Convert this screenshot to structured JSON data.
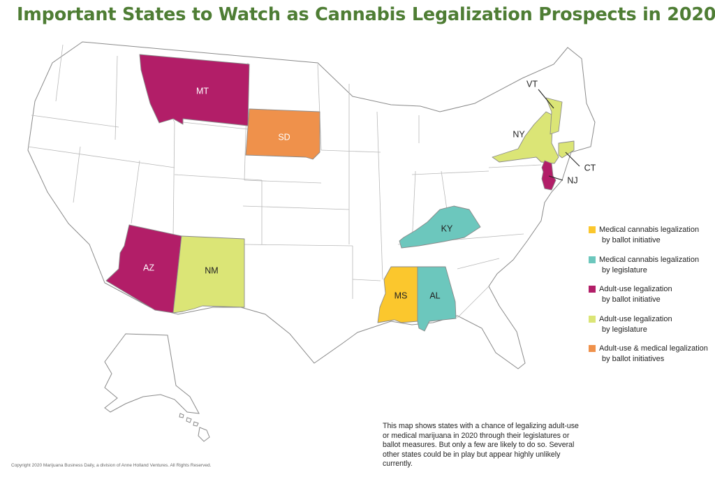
{
  "title": "Important States to Watch as Cannabis Legalization Prospects in 2020",
  "colors": {
    "medical_ballot": "#fbc72d",
    "medical_legislature": "#6cc7bd",
    "adult_ballot": "#b21e68",
    "adult_legislature": "#dbe576",
    "adult_medical_ballot": "#ef914b",
    "border": "#8a8a8a",
    "title": "#4e7d34"
  },
  "legend": [
    {
      "key": "medical_ballot",
      "line1": "Medical cannabis legalization",
      "line2": "by ballot initiative"
    },
    {
      "key": "medical_legislature",
      "line1": "Medical cannabis legalization",
      "line2": "by legislature"
    },
    {
      "key": "adult_ballot",
      "line1": "Adult-use legalization",
      "line2": "by ballot initiative"
    },
    {
      "key": "adult_legislature",
      "line1": "Adult-use legalization",
      "line2": "by legislature"
    },
    {
      "key": "adult_medical_ballot",
      "line1": "Adult-use & medical legalization",
      "line2": "by ballot initiatives"
    }
  ],
  "states": {
    "MT": {
      "label": "MT",
      "category": "adult_ballot"
    },
    "SD": {
      "label": "SD",
      "category": "adult_medical_ballot"
    },
    "AZ": {
      "label": "AZ",
      "category": "adult_ballot"
    },
    "NM": {
      "label": "NM",
      "category": "adult_legislature"
    },
    "KY": {
      "label": "KY",
      "category": "medical_legislature"
    },
    "MS": {
      "label": "MS",
      "category": "medical_ballot"
    },
    "AL": {
      "label": "AL",
      "category": "medical_legislature"
    },
    "NY": {
      "label": "NY",
      "category": "adult_legislature"
    },
    "VT": {
      "label": "VT",
      "category": "adult_legislature"
    },
    "CT": {
      "label": "CT",
      "category": "adult_legislature"
    },
    "NJ": {
      "label": "NJ",
      "category": "adult_ballot"
    }
  },
  "note": "This map shows states with a chance of legalizing adult-use or medical marijuana in 2020 through their legislatures or ballot measures. But only a few are likely to do so. Several other states could be in play but appear highly unlikely currently.",
  "copyright": "Copyright 2020 Marijuana Business Daily, a division of Anne Holland Ventures. All Rights Reserved."
}
